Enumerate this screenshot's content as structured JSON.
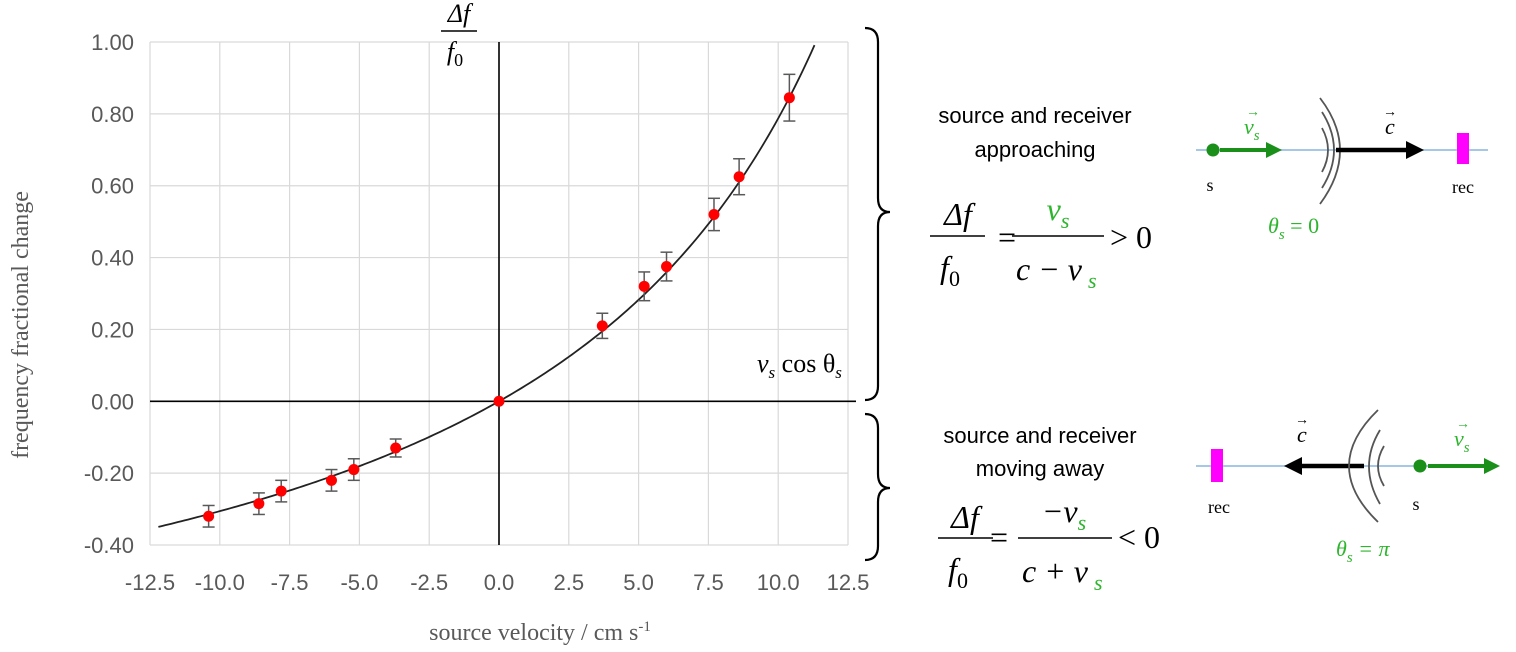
{
  "chart_data": {
    "type": "scatter",
    "xlabel": "source velocity / cm s",
    "xlabel_sup": "-1",
    "ylabel": "frequency fractional change",
    "xlim": [
      -12.5,
      12.5
    ],
    "ylim": [
      -0.4,
      1.0
    ],
    "x_ticks": [
      "-12.5",
      "-10.0",
      "-7.5",
      "-5.0",
      "-2.5",
      "0.0",
      "2.5",
      "5.0",
      "7.5",
      "10.0",
      "12.5"
    ],
    "y_ticks": [
      "1.00",
      "0.80",
      "0.60",
      "0.40",
      "0.20",
      "0.00",
      "-0.20",
      "-0.40"
    ],
    "grid": true,
    "axis_label_top_num": "Δf",
    "axis_label_top_den": "f",
    "axis_label_top_sub": "0",
    "axis_label_right": "v",
    "axis_label_right_sub": "s",
    "axis_label_right_rest": " cos θ",
    "points": [
      {
        "x": -10.4,
        "y": -0.32,
        "err": 0.03
      },
      {
        "x": -8.6,
        "y": -0.285,
        "err": 0.03
      },
      {
        "x": -7.8,
        "y": -0.25,
        "err": 0.03
      },
      {
        "x": -6.0,
        "y": -0.22,
        "err": 0.03
      },
      {
        "x": -5.2,
        "y": -0.19,
        "err": 0.03
      },
      {
        "x": -3.7,
        "y": -0.13,
        "err": 0.025
      },
      {
        "x": 0.0,
        "y": 0.0,
        "err": 0
      },
      {
        "x": 3.7,
        "y": 0.21,
        "err": 0.035
      },
      {
        "x": 5.2,
        "y": 0.32,
        "err": 0.04
      },
      {
        "x": 6.0,
        "y": 0.375,
        "err": 0.04
      },
      {
        "x": 7.7,
        "y": 0.52,
        "err": 0.045
      },
      {
        "x": 8.6,
        "y": 0.625,
        "err": 0.05
      },
      {
        "x": 10.4,
        "y": 0.845,
        "err": 0.065
      }
    ],
    "fit_curve": {
      "model": "v/(c - v)",
      "c": 22.7,
      "x_range": [
        -12.2,
        11.3
      ]
    },
    "colors": {
      "points": "#ff0000",
      "errorbars": "#595959",
      "curve": "#222222",
      "grid": "#d9d9d9",
      "axis": "#000000"
    }
  },
  "annotations": {
    "approach_caption_line1": "source and receiver",
    "approach_caption_line2": "approaching",
    "approach_eq_num": "Δf",
    "approach_eq_den": "f",
    "approach_eq_den_sub": "0",
    "approach_eq_rhs_num": "v",
    "approach_eq_rhs_num_sub": "s",
    "approach_eq_rhs_den": "c − v",
    "approach_eq_rhs_den_sub": "s",
    "approach_eq_ineq": "> 0",
    "away_caption_line1": "source and receiver",
    "away_caption_line2": "moving away",
    "away_eq_num": "Δf",
    "away_eq_den": "f",
    "away_eq_den_sub": "0",
    "away_eq_rhs_num": "−v",
    "away_eq_rhs_num_sub": "s",
    "away_eq_rhs_den": "c + v",
    "away_eq_rhs_den_sub": "s",
    "away_eq_ineq": "< 0",
    "eq_sign": "=",
    "diagram_top": {
      "source_label": "s",
      "receiver_label": "rec",
      "vs_label": "v",
      "vs_sub": "s",
      "c_label": "c",
      "theta_label": "θ",
      "theta_sub": "s",
      "theta_value": " = 0"
    },
    "diagram_bottom": {
      "source_label": "s",
      "receiver_label": "rec",
      "vs_label": "v",
      "vs_sub": "s",
      "c_label": "c",
      "theta_label": "θ",
      "theta_sub": "s",
      "theta_value": " = π"
    },
    "colors": {
      "green": "#2db52d",
      "arrow_green": "#1a8f1a",
      "magenta": "#ff00ff",
      "line_blue": "#a7c7e7",
      "wave": "#555555"
    }
  }
}
